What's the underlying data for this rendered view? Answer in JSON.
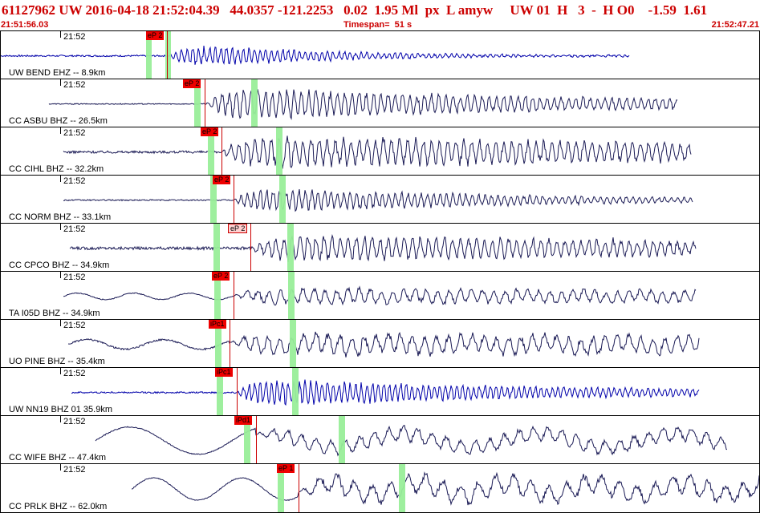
{
  "header": {
    "title": "61127962 UW 2016-04-18 21:52:04.39   44.0357 -121.2253   0.02  1.95 Ml  px  L amyw     UW 01  H   3  -  H O0    -1.59  1.61",
    "start_time": "21:51:56.03",
    "timespan": "Timespan=  51 s",
    "end_time": "21:52:47.21"
  },
  "colors": {
    "header_text": "#cc0000",
    "pick_flag": "#ee0000",
    "window_green": "#99ee99",
    "trace_blue": "#0000aa",
    "trace_navy": "#1a1a55"
  },
  "traces": [
    {
      "time_label": "21:52",
      "station": "UW BEND EHZ -- 8.9km",
      "pick": "eP 2",
      "pick_style": "red"
    },
    {
      "time_label": "21:52",
      "station": "CC ASBU BHZ -- 26.5km",
      "pick": "eP 2",
      "pick_style": "red"
    },
    {
      "time_label": "21:52",
      "station": "CC CIHL BHZ -- 32.2km",
      "pick": "eP 2",
      "pick_style": "red"
    },
    {
      "time_label": "21:52",
      "station": "CC NORM BHZ -- 33.1km",
      "pick": "eP 2",
      "pick_style": "red"
    },
    {
      "time_label": "21:52",
      "station": "CC CPCO BHZ -- 34.9km",
      "pick": "eP 2",
      "pick_style": "outline"
    },
    {
      "time_label": "21:52",
      "station": "TA I05D BHZ -- 34.9km",
      "pick": "eP 2",
      "pick_style": "red"
    },
    {
      "time_label": "21:52",
      "station": "UO PINE BHZ -- 35.4km",
      "pick": "iPc1",
      "pick_style": "red"
    },
    {
      "time_label": "21:52",
      "station": "UW NN19 BHZ 01 35.9km",
      "pick": "iPc1",
      "pick_style": "red"
    },
    {
      "time_label": "21:52",
      "station": "CC WIFE BHZ -- 47.4km",
      "pick": "iPd1",
      "pick_style": "red"
    },
    {
      "time_label": "21:52",
      "station": "CC PRLK BHZ -- 62.0km",
      "pick": "eP 1",
      "pick_style": "red"
    }
  ]
}
